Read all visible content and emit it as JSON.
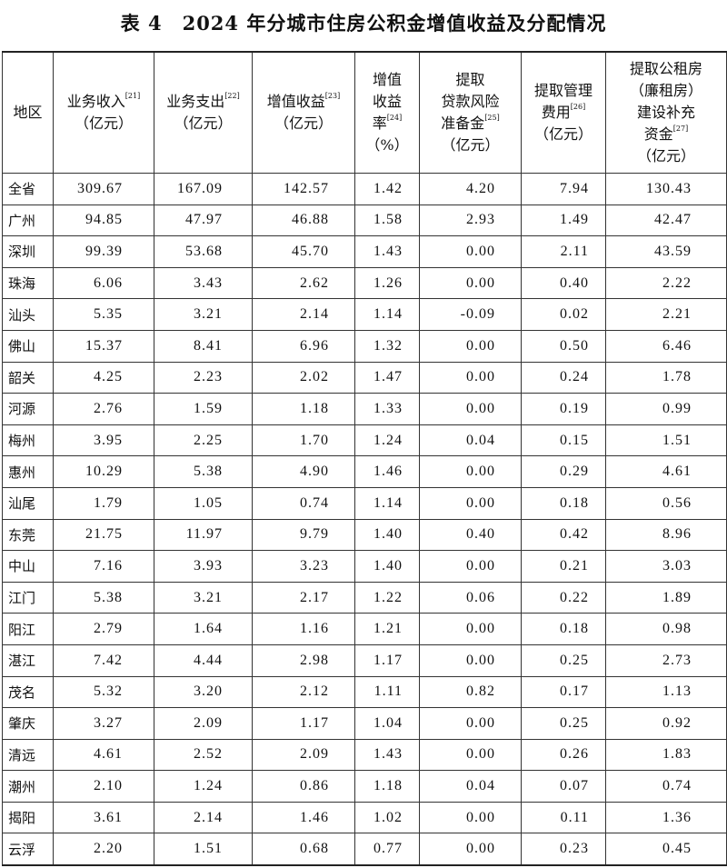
{
  "title": "表 4　2024 年分城市住房公积金增值收益及分配情况",
  "headers": [
    {
      "lines": [
        "地区"
      ],
      "sup": ""
    },
    {
      "lines": [
        "业务收入"
      ],
      "sup": "[21]",
      "after": [
        "（亿元）"
      ]
    },
    {
      "lines": [
        "业务支出"
      ],
      "sup": "[22]",
      "after": [
        "（亿元）"
      ]
    },
    {
      "lines": [
        "增值收益"
      ],
      "sup": "[23]",
      "after": [
        "（亿元）"
      ]
    },
    {
      "lines": [
        "增值",
        "收益",
        "率"
      ],
      "sup": "[24]",
      "after": [
        "（%）"
      ]
    },
    {
      "lines": [
        "提取",
        "贷款风险",
        "准备金"
      ],
      "sup": "[25]",
      "after": [
        "（亿元）"
      ]
    },
    {
      "lines": [
        "提取管理",
        "费用"
      ],
      "sup": "[26]",
      "after": [
        "（亿元）"
      ]
    },
    {
      "lines": [
        "提取公租房",
        "（廉租房）",
        "建设补充",
        "资金"
      ],
      "sup": "[27]",
      "after": [
        "（亿元）"
      ]
    }
  ],
  "rows": [
    [
      "全省",
      "309.67",
      "167.09",
      "142.57",
      "1.42",
      "4.20",
      "7.94",
      "130.43"
    ],
    [
      "广州",
      "94.85",
      "47.97",
      "46.88",
      "1.58",
      "2.93",
      "1.49",
      "42.47"
    ],
    [
      "深圳",
      "99.39",
      "53.68",
      "45.70",
      "1.43",
      "0.00",
      "2.11",
      "43.59"
    ],
    [
      "珠海",
      "6.06",
      "3.43",
      "2.62",
      "1.26",
      "0.00",
      "0.40",
      "2.22"
    ],
    [
      "汕头",
      "5.35",
      "3.21",
      "2.14",
      "1.14",
      "-0.09",
      "0.02",
      "2.21"
    ],
    [
      "佛山",
      "15.37",
      "8.41",
      "6.96",
      "1.32",
      "0.00",
      "0.50",
      "6.46"
    ],
    [
      "韶关",
      "4.25",
      "2.23",
      "2.02",
      "1.47",
      "0.00",
      "0.24",
      "1.78"
    ],
    [
      "河源",
      "2.76",
      "1.59",
      "1.18",
      "1.33",
      "0.00",
      "0.19",
      "0.99"
    ],
    [
      "梅州",
      "3.95",
      "2.25",
      "1.70",
      "1.24",
      "0.04",
      "0.15",
      "1.51"
    ],
    [
      "惠州",
      "10.29",
      "5.38",
      "4.90",
      "1.46",
      "0.00",
      "0.29",
      "4.61"
    ],
    [
      "汕尾",
      "1.79",
      "1.05",
      "0.74",
      "1.14",
      "0.00",
      "0.18",
      "0.56"
    ],
    [
      "东莞",
      "21.75",
      "11.97",
      "9.79",
      "1.40",
      "0.40",
      "0.42",
      "8.96"
    ],
    [
      "中山",
      "7.16",
      "3.93",
      "3.23",
      "1.40",
      "0.00",
      "0.21",
      "3.03"
    ],
    [
      "江门",
      "5.38",
      "3.21",
      "2.17",
      "1.22",
      "0.06",
      "0.22",
      "1.89"
    ],
    [
      "阳江",
      "2.79",
      "1.64",
      "1.16",
      "1.21",
      "0.00",
      "0.18",
      "0.98"
    ],
    [
      "湛江",
      "7.42",
      "4.44",
      "2.98",
      "1.17",
      "0.00",
      "0.25",
      "2.73"
    ],
    [
      "茂名",
      "5.32",
      "3.20",
      "2.12",
      "1.11",
      "0.82",
      "0.17",
      "1.13"
    ],
    [
      "肇庆",
      "3.27",
      "2.09",
      "1.17",
      "1.04",
      "0.00",
      "0.25",
      "0.92"
    ],
    [
      "清远",
      "4.61",
      "2.52",
      "2.09",
      "1.43",
      "0.00",
      "0.26",
      "1.83"
    ],
    [
      "潮州",
      "2.10",
      "1.24",
      "0.86",
      "1.18",
      "0.04",
      "0.07",
      "0.74"
    ],
    [
      "揭阳",
      "3.61",
      "2.14",
      "1.46",
      "1.02",
      "0.00",
      "0.11",
      "1.36"
    ],
    [
      "云浮",
      "2.20",
      "1.51",
      "0.68",
      "0.77",
      "0.00",
      "0.23",
      "0.45"
    ]
  ]
}
